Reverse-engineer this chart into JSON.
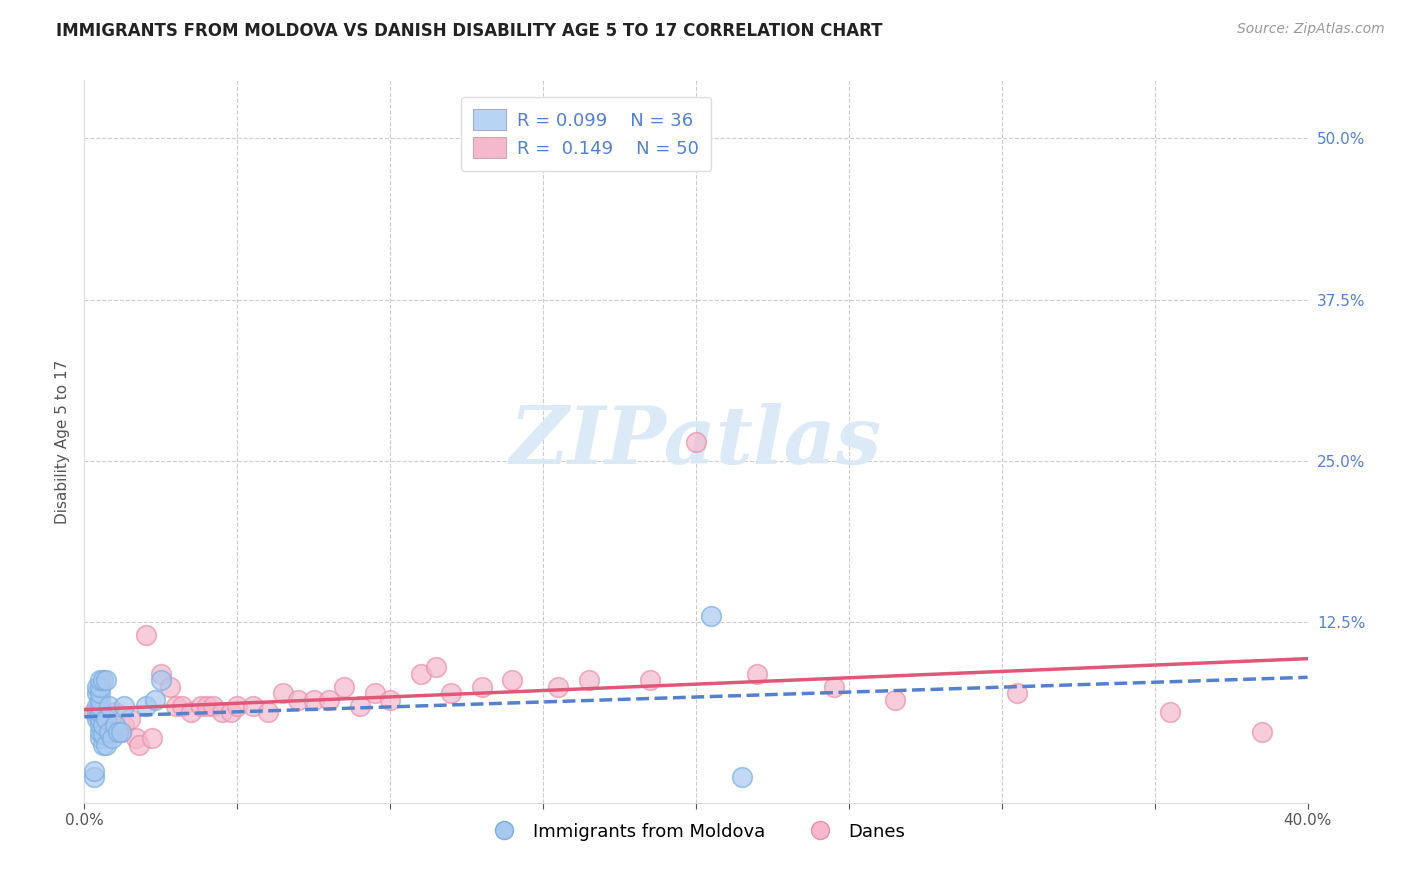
{
  "title": "IMMIGRANTS FROM MOLDOVA VS DANISH DISABILITY AGE 5 TO 17 CORRELATION CHART",
  "source_text": "Source: ZipAtlas.com",
  "ylabel": "Disability Age 5 to 17",
  "xlim": [
    0.0,
    0.4
  ],
  "ylim": [
    -0.015,
    0.545
  ],
  "xtick_values": [
    0.0,
    0.05,
    0.1,
    0.15,
    0.2,
    0.25,
    0.3,
    0.35,
    0.4
  ],
  "xtick_labels": [
    "0.0%",
    "",
    "",
    "",
    "",
    "",
    "",
    "",
    "40.0%"
  ],
  "ytick_values": [
    0.125,
    0.25,
    0.375,
    0.5
  ],
  "ytick_labels": [
    "12.5%",
    "25.0%",
    "37.5%",
    "50.0%"
  ],
  "ytick_grid_values": [
    0.125,
    0.25,
    0.375,
    0.5
  ],
  "grid_color": "#cccccc",
  "background_color": "#ffffff",
  "legend_R_blue": "0.099",
  "legend_N_blue": "36",
  "legend_R_pink": "0.149",
  "legend_N_pink": "50",
  "blue_scatter_color": "#a8c8f0",
  "blue_scatter_edge": "#7aaee0",
  "pink_scatter_color": "#f5b8cc",
  "pink_scatter_edge": "#e890aa",
  "blue_line_color": "#5580cc",
  "pink_line_color": "#e05878",
  "legend_blue_fill": "#b8d4f4",
  "legend_pink_fill": "#f5b8cc",
  "watermark_color": "#d8e8f5",
  "tick_color": "#5580cc",
  "title_color": "#222222",
  "source_color": "#999999",
  "blue_scatter_x": [
    0.003,
    0.003,
    0.004,
    0.004,
    0.004,
    0.004,
    0.004,
    0.005,
    0.005,
    0.005,
    0.005,
    0.005,
    0.005,
    0.005,
    0.005,
    0.005,
    0.005,
    0.006,
    0.006,
    0.006,
    0.006,
    0.007,
    0.007,
    0.007,
    0.008,
    0.008,
    0.009,
    0.01,
    0.011,
    0.012,
    0.013,
    0.02,
    0.023,
    0.025,
    0.205,
    0.215
  ],
  "blue_scatter_y": [
    0.005,
    0.01,
    0.05,
    0.055,
    0.06,
    0.07,
    0.075,
    0.035,
    0.04,
    0.045,
    0.05,
    0.055,
    0.06,
    0.065,
    0.07,
    0.075,
    0.08,
    0.03,
    0.038,
    0.045,
    0.08,
    0.03,
    0.05,
    0.08,
    0.04,
    0.06,
    0.035,
    0.045,
    0.04,
    0.04,
    0.06,
    0.06,
    0.065,
    0.08,
    0.13,
    0.005
  ],
  "pink_scatter_x": [
    0.003,
    0.005,
    0.007,
    0.008,
    0.009,
    0.01,
    0.011,
    0.012,
    0.013,
    0.015,
    0.017,
    0.018,
    0.02,
    0.022,
    0.025,
    0.028,
    0.03,
    0.032,
    0.035,
    0.038,
    0.04,
    0.042,
    0.045,
    0.048,
    0.05,
    0.055,
    0.06,
    0.065,
    0.07,
    0.075,
    0.08,
    0.085,
    0.09,
    0.095,
    0.1,
    0.11,
    0.115,
    0.12,
    0.13,
    0.14,
    0.155,
    0.165,
    0.185,
    0.2,
    0.22,
    0.245,
    0.265,
    0.305,
    0.355,
    0.385
  ],
  "pink_scatter_y": [
    0.055,
    0.05,
    0.045,
    0.04,
    0.04,
    0.055,
    0.04,
    0.04,
    0.045,
    0.05,
    0.035,
    0.03,
    0.115,
    0.035,
    0.085,
    0.075,
    0.06,
    0.06,
    0.055,
    0.06,
    0.06,
    0.06,
    0.055,
    0.055,
    0.06,
    0.06,
    0.055,
    0.07,
    0.065,
    0.065,
    0.065,
    0.075,
    0.06,
    0.07,
    0.065,
    0.085,
    0.09,
    0.07,
    0.075,
    0.08,
    0.075,
    0.08,
    0.08,
    0.265,
    0.085,
    0.075,
    0.065,
    0.07,
    0.055,
    0.04
  ],
  "title_fontsize": 12,
  "source_fontsize": 10,
  "axis_label_fontsize": 11,
  "tick_fontsize": 11,
  "legend_fontsize": 13
}
